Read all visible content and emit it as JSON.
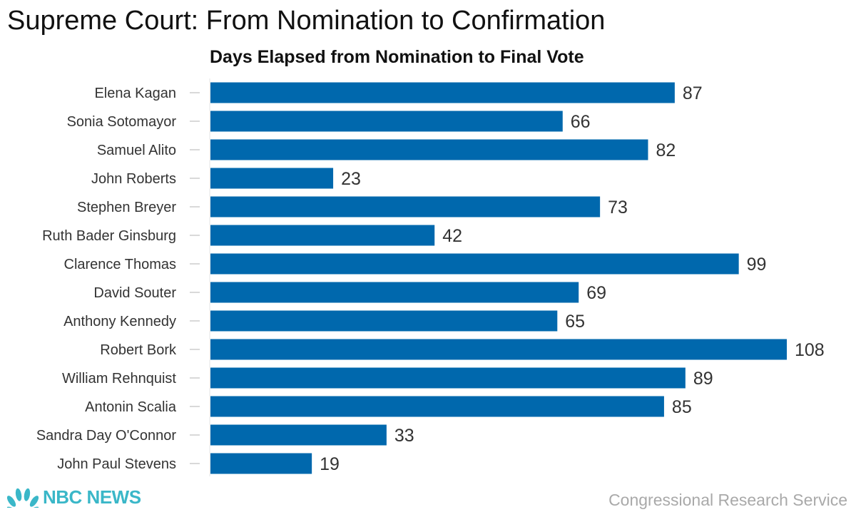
{
  "title": "Supreme Court: From Nomination to Confirmation",
  "brand": {
    "logo_text": "NBC NEWS",
    "logo_icon": "peacock-icon",
    "logo_color": "#3ab7c8"
  },
  "source": "Congressional Research Service",
  "colors": {
    "bar": "#0068ad",
    "text": "#333333",
    "tick": "#cccccc"
  },
  "chart_data": {
    "type": "bar",
    "orientation": "horizontal",
    "title": "Days Elapsed from Nomination to Final Vote",
    "xlabel": "",
    "ylabel": "",
    "grid": false,
    "xlim": [
      0,
      108
    ],
    "categories": [
      "Elena Kagan",
      "Sonia Sotomayor",
      "Samuel Alito",
      "John Roberts",
      "Stephen Breyer",
      "Ruth Bader Ginsburg",
      "Clarence Thomas",
      "David Souter",
      "Anthony Kennedy",
      "Robert Bork",
      "William Rehnquist",
      "Antonin Scalia",
      "Sandra Day O'Connor",
      "John Paul Stevens"
    ],
    "values": [
      87,
      66,
      82,
      23,
      73,
      42,
      99,
      69,
      65,
      108,
      89,
      85,
      33,
      19
    ]
  }
}
